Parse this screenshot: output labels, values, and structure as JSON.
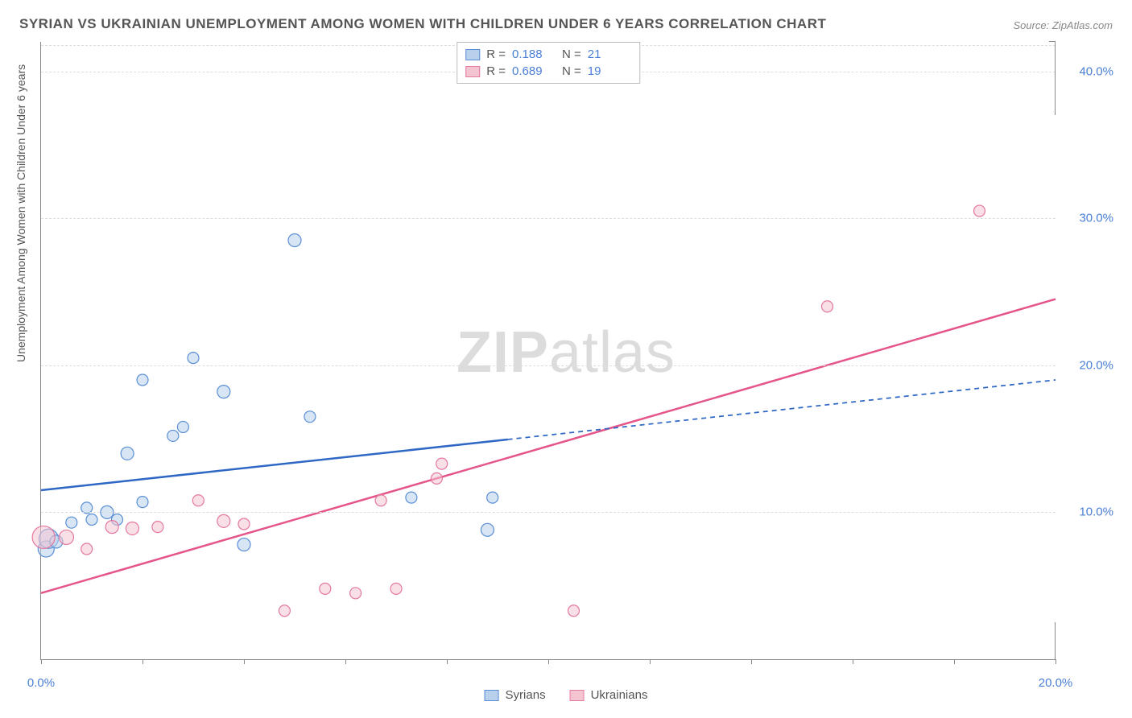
{
  "title": "SYRIAN VS UKRAINIAN UNEMPLOYMENT AMONG WOMEN WITH CHILDREN UNDER 6 YEARS CORRELATION CHART",
  "source": "Source: ZipAtlas.com",
  "y_axis_label": "Unemployment Among Women with Children Under 6 years",
  "watermark_bold": "ZIP",
  "watermark_light": "atlas",
  "chart": {
    "type": "scatter",
    "xlim": [
      0,
      20
    ],
    "ylim": [
      0,
      42
    ],
    "x_ticks": [
      0,
      2,
      4,
      6,
      8,
      10,
      12,
      14,
      16,
      18,
      20
    ],
    "x_tick_labels_shown": {
      "0": "0.0%",
      "20": "20.0%"
    },
    "y_gridlines": [
      10,
      20,
      30,
      40
    ],
    "y_tick_labels": {
      "10": "10.0%",
      "20": "20.0%",
      "30": "30.0%",
      "40": "40.0%"
    },
    "background": "#ffffff",
    "grid_color": "#dddddd",
    "axis_color": "#888888",
    "right_axis_segments": [
      [
        0,
        2.5
      ],
      [
        37,
        42
      ]
    ],
    "series": {
      "syrians": {
        "label": "Syrians",
        "fill": "#b8d0ec",
        "stroke": "#5a8fd6",
        "fill_opacity": 0.55,
        "stroke_width": 1.2,
        "points": [
          {
            "x": 0.1,
            "y": 7.5,
            "r": 10
          },
          {
            "x": 0.15,
            "y": 8.2,
            "r": 12
          },
          {
            "x": 0.3,
            "y": 8.0,
            "r": 8
          },
          {
            "x": 0.6,
            "y": 9.3,
            "r": 7
          },
          {
            "x": 0.9,
            "y": 10.3,
            "r": 7
          },
          {
            "x": 1.0,
            "y": 9.5,
            "r": 7
          },
          {
            "x": 1.3,
            "y": 10.0,
            "r": 8
          },
          {
            "x": 1.5,
            "y": 9.5,
            "r": 7
          },
          {
            "x": 1.7,
            "y": 14.0,
            "r": 8
          },
          {
            "x": 2.0,
            "y": 10.7,
            "r": 7
          },
          {
            "x": 2.0,
            "y": 19.0,
            "r": 7
          },
          {
            "x": 2.6,
            "y": 15.2,
            "r": 7
          },
          {
            "x": 2.8,
            "y": 15.8,
            "r": 7
          },
          {
            "x": 3.0,
            "y": 20.5,
            "r": 7
          },
          {
            "x": 3.6,
            "y": 18.2,
            "r": 8
          },
          {
            "x": 4.0,
            "y": 7.8,
            "r": 8
          },
          {
            "x": 5.0,
            "y": 28.5,
            "r": 8
          },
          {
            "x": 5.3,
            "y": 16.5,
            "r": 7
          },
          {
            "x": 7.3,
            "y": 11.0,
            "r": 7
          },
          {
            "x": 8.8,
            "y": 8.8,
            "r": 8
          },
          {
            "x": 8.9,
            "y": 11.0,
            "r": 7
          }
        ],
        "trend": {
          "x1": 0,
          "y1": 11.5,
          "x2": 20,
          "y2": 19.0,
          "solid_until_x": 9.2,
          "color": "#2f68c4",
          "width": 2.5,
          "dash": "6,5"
        }
      },
      "ukrainians": {
        "label": "Ukrainians",
        "fill": "#f4c4d1",
        "stroke": "#e479a0",
        "fill_opacity": 0.55,
        "stroke_width": 1.2,
        "points": [
          {
            "x": 0.05,
            "y": 8.3,
            "r": 14
          },
          {
            "x": 0.5,
            "y": 8.3,
            "r": 9
          },
          {
            "x": 0.9,
            "y": 7.5,
            "r": 7
          },
          {
            "x": 1.4,
            "y": 9.0,
            "r": 8
          },
          {
            "x": 1.8,
            "y": 8.9,
            "r": 8
          },
          {
            "x": 2.3,
            "y": 9.0,
            "r": 7
          },
          {
            "x": 3.1,
            "y": 10.8,
            "r": 7
          },
          {
            "x": 3.6,
            "y": 9.4,
            "r": 8
          },
          {
            "x": 4.0,
            "y": 9.2,
            "r": 7
          },
          {
            "x": 4.8,
            "y": 3.3,
            "r": 7
          },
          {
            "x": 5.6,
            "y": 4.8,
            "r": 7
          },
          {
            "x": 6.2,
            "y": 4.5,
            "r": 7
          },
          {
            "x": 6.7,
            "y": 10.8,
            "r": 7
          },
          {
            "x": 7.0,
            "y": 4.8,
            "r": 7
          },
          {
            "x": 7.8,
            "y": 12.3,
            "r": 7
          },
          {
            "x": 7.9,
            "y": 13.3,
            "r": 7
          },
          {
            "x": 10.5,
            "y": 3.3,
            "r": 7
          },
          {
            "x": 15.5,
            "y": 24.0,
            "r": 7
          },
          {
            "x": 18.5,
            "y": 30.5,
            "r": 7
          }
        ],
        "trend": {
          "x1": 0,
          "y1": 4.5,
          "x2": 20,
          "y2": 24.5,
          "solid_until_x": 20,
          "color": "#e5558a",
          "width": 2.5,
          "dash": "none"
        }
      }
    }
  },
  "top_legend": [
    {
      "swatch_fill": "#b8d0ec",
      "swatch_stroke": "#5a8fd6",
      "r_label": "R =",
      "r_value": "0.188",
      "n_label": "N =",
      "n_value": "21"
    },
    {
      "swatch_fill": "#f4c4d1",
      "swatch_stroke": "#e479a0",
      "r_label": "R =",
      "r_value": "0.689",
      "n_label": "N =",
      "n_value": "19"
    }
  ],
  "bottom_legend": [
    {
      "swatch_fill": "#b8d0ec",
      "swatch_stroke": "#5a8fd6",
      "label": "Syrians"
    },
    {
      "swatch_fill": "#f4c4d1",
      "swatch_stroke": "#e479a0",
      "label": "Ukrainians"
    }
  ]
}
